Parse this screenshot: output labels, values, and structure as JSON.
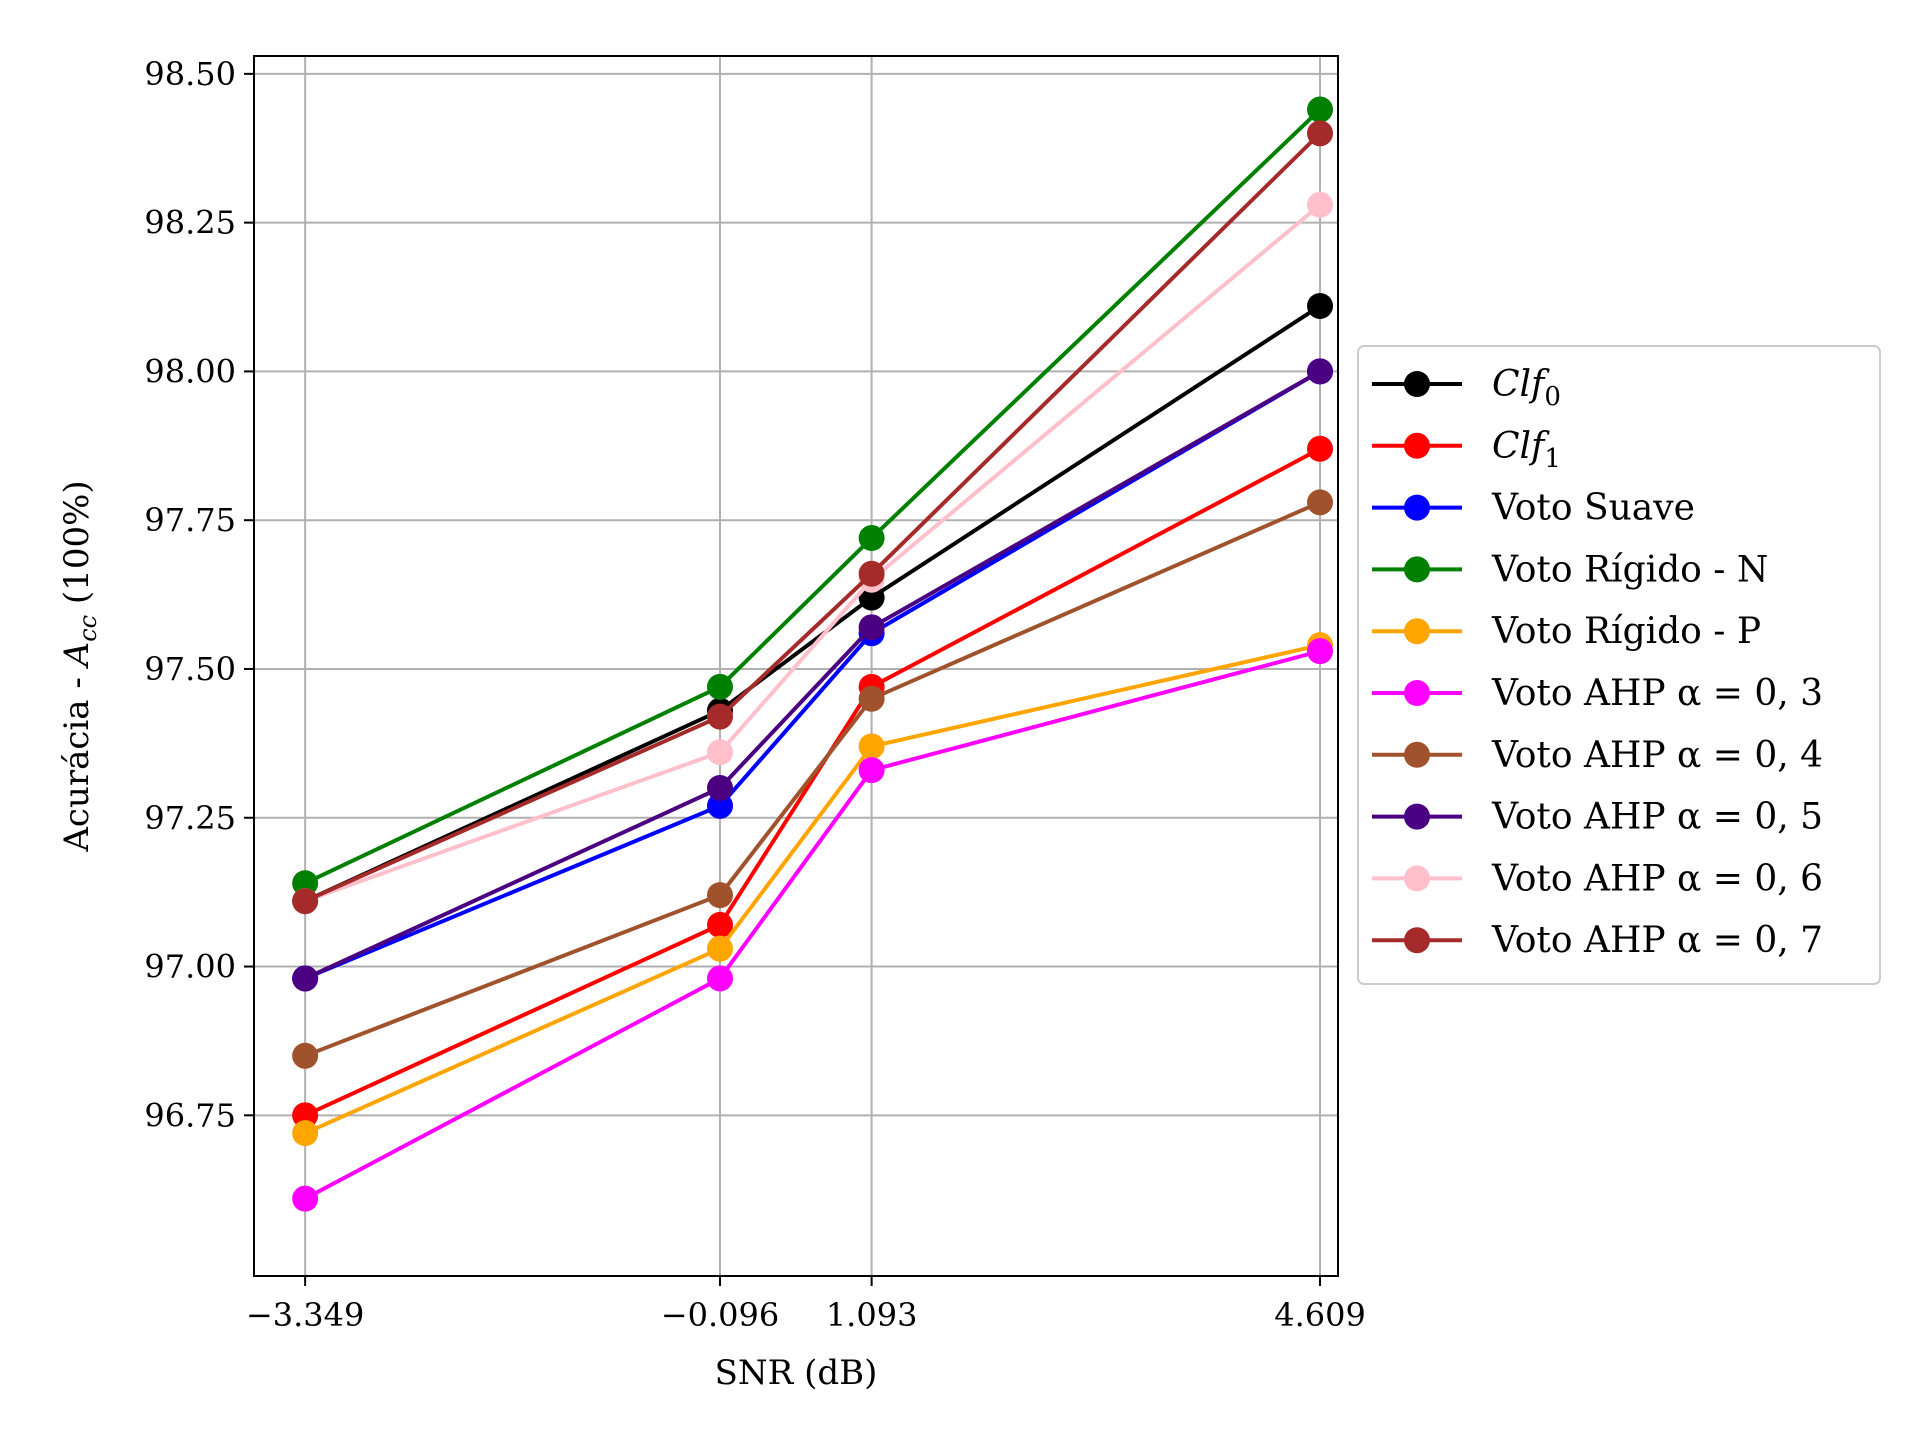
{
  "chart_data": {
    "type": "line",
    "xlabel": "SNR (dB)",
    "ylabel_main": "Acurácia - ",
    "ylabel_math_base": "A",
    "ylabel_math_sub": "cc",
    "ylabel_tail": " (100%)",
    "x": [
      -3.349,
      -0.096,
      1.093,
      4.609
    ],
    "x_tick_labels": [
      "−3.349",
      "−0.096",
      "1.093",
      "4.609"
    ],
    "xlim": [
      -3.75,
      4.75
    ],
    "ylim": [
      96.48,
      98.53
    ],
    "y_ticks": [
      96.75,
      97.0,
      97.25,
      97.5,
      97.75,
      98.0,
      98.25,
      98.5
    ],
    "y_tick_labels": [
      "96.75",
      "97.00",
      "97.25",
      "97.50",
      "97.75",
      "98.00",
      "98.25",
      "98.50"
    ],
    "grid": true,
    "legend_position": "outside-right",
    "series": [
      {
        "name": "Clf",
        "name_sub": "0",
        "italic": true,
        "color": "#000000",
        "values": [
          97.11,
          97.43,
          97.62,
          98.11
        ]
      },
      {
        "name": "Clf",
        "name_sub": "1",
        "italic": true,
        "color": "#ff0000",
        "values": [
          96.75,
          97.07,
          97.47,
          97.87
        ]
      },
      {
        "name": "Voto Suave",
        "color": "#0000ff",
        "values": [
          96.98,
          97.27,
          97.56,
          98.0
        ]
      },
      {
        "name": "Voto Rígido - N",
        "color": "#008000",
        "values": [
          97.14,
          97.47,
          97.72,
          98.44
        ]
      },
      {
        "name": "Voto Rígido - P",
        "color": "#ffa500",
        "values": [
          96.72,
          97.03,
          97.37,
          97.54
        ]
      },
      {
        "name": "Voto AHP α = 0, 3",
        "color": "#ff00ff",
        "values": [
          96.61,
          96.98,
          97.33,
          97.53
        ]
      },
      {
        "name": "Voto AHP α = 0, 4",
        "color": "#a0522d",
        "values": [
          96.85,
          97.12,
          97.45,
          97.78
        ]
      },
      {
        "name": "Voto AHP α = 0, 5",
        "color": "#4b0082",
        "values": [
          96.98,
          97.3,
          97.57,
          98.0
        ]
      },
      {
        "name": "Voto AHP α = 0, 6",
        "color": "#ffc0cb",
        "values": [
          97.11,
          97.36,
          97.65,
          98.28
        ]
      },
      {
        "name": "Voto AHP α = 0, 7",
        "color": "#a52a2a",
        "values": [
          97.11,
          97.42,
          97.66,
          98.4
        ]
      }
    ]
  }
}
